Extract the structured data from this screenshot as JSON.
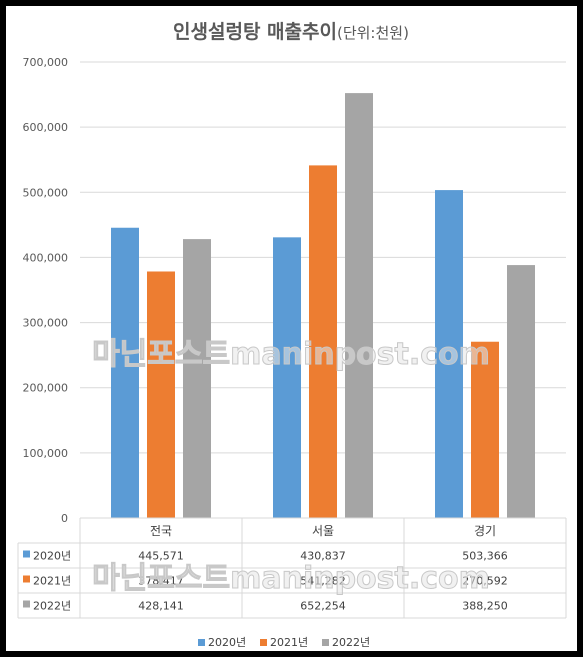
{
  "chart_data": {
    "type": "bar",
    "title": "인생설렁탕 매출추이",
    "title_unit": "(단위:천원)",
    "categories": [
      "전국",
      "서울",
      "경기"
    ],
    "series": [
      {
        "name": "2020년",
        "color": "#5b9bd5",
        "values": [
          445571,
          430837,
          503366
        ],
        "labels": [
          "445,571",
          "430,837",
          "503,366"
        ]
      },
      {
        "name": "2021년",
        "color": "#ed7d31",
        "values": [
          378417,
          541282,
          270592
        ],
        "labels": [
          "378,417",
          "541,282",
          "270,592"
        ]
      },
      {
        "name": "2022년",
        "color": "#a5a5a5",
        "values": [
          428141,
          652254,
          388250
        ],
        "labels": [
          "428,141",
          "652,254",
          "388,250"
        ]
      }
    ],
    "ylim": [
      0,
      700000
    ],
    "yticks": [
      0,
      100000,
      200000,
      300000,
      400000,
      500000,
      600000,
      700000
    ],
    "ytick_labels": [
      "0",
      "100,000",
      "200,000",
      "300,000",
      "400,000",
      "500,000",
      "600,000",
      "700,000"
    ],
    "grid": true,
    "legend_position": "bottom",
    "data_table": true
  },
  "watermark": "마닌포스트maninpost.com"
}
